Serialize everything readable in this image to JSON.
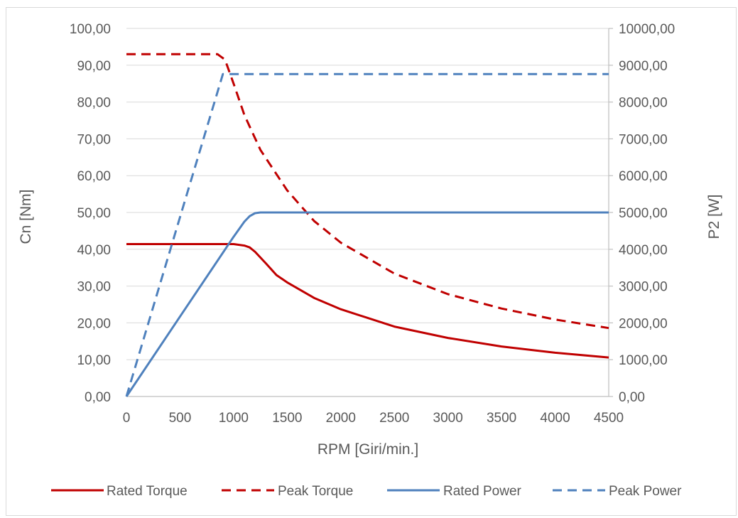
{
  "chart_data": {
    "type": "line",
    "title": "",
    "xlabel": "RPM [Giri/min.]",
    "ylabel_left": "Cn [Nm]",
    "ylabel_right": "P2 [W]",
    "xlim": [
      0,
      4500
    ],
    "ylim_left": [
      0,
      100
    ],
    "ylim_right": [
      0,
      10000
    ],
    "x_ticks": [
      0,
      500,
      1000,
      1500,
      2000,
      2500,
      3000,
      3500,
      4000,
      4500
    ],
    "x_tick_labels": [
      "0",
      "500",
      "1000",
      "1500",
      "2000",
      "2500",
      "3000",
      "3500",
      "4000",
      "4500"
    ],
    "y_left_ticks": [
      0,
      10,
      20,
      30,
      40,
      50,
      60,
      70,
      80,
      90,
      100
    ],
    "y_left_tick_labels": [
      "0,00",
      "10,00",
      "20,00",
      "30,00",
      "40,00",
      "50,00",
      "60,00",
      "70,00",
      "80,00",
      "90,00",
      "100,00"
    ],
    "y_right_ticks": [
      0,
      1000,
      2000,
      3000,
      4000,
      5000,
      6000,
      7000,
      8000,
      9000,
      10000
    ],
    "y_right_tick_labels": [
      "0,00",
      "1000,00",
      "2000,00",
      "3000,00",
      "4000,00",
      "5000,00",
      "6000,00",
      "7000,00",
      "8000,00",
      "9000,00",
      "10000,00"
    ],
    "grid": "horizontal",
    "legend_position": "bottom",
    "series": [
      {
        "name": "Rated Torque",
        "axis": "left",
        "color": "#c00000",
        "dash": "solid",
        "x": [
          0,
          500,
          1000,
          1100,
          1150,
          1200,
          1300,
          1400,
          1500,
          1750,
          2000,
          2500,
          3000,
          3500,
          4000,
          4500
        ],
        "y": [
          41.4,
          41.4,
          41.4,
          41.0,
          40.5,
          39.3,
          36.2,
          33.0,
          31.0,
          26.8,
          23.7,
          19.0,
          15.9,
          13.6,
          11.9,
          10.6
        ]
      },
      {
        "name": "Peak Torque",
        "axis": "left",
        "color": "#c00000",
        "dash": "dashed",
        "x": [
          0,
          500,
          850,
          920,
          1000,
          1100,
          1250,
          1500,
          1750,
          2000,
          2500,
          3000,
          3500,
          4000,
          4500
        ],
        "y": [
          93.0,
          93.0,
          93.0,
          91.5,
          85.0,
          76.5,
          67.0,
          56.0,
          47.7,
          41.8,
          33.4,
          27.8,
          23.9,
          20.9,
          18.6
        ]
      },
      {
        "name": "Rated Power",
        "axis": "right",
        "color": "#4f81bd",
        "dash": "solid",
        "x": [
          0,
          500,
          1000,
          1100,
          1150,
          1200,
          1250,
          1300,
          1500,
          2000,
          3000,
          4000,
          4500
        ],
        "y": [
          0,
          2170,
          4340,
          4750,
          4900,
          4980,
          5000,
          5000,
          5000,
          5000,
          5000,
          5000,
          5000
        ]
      },
      {
        "name": "Peak Power",
        "axis": "right",
        "color": "#4f81bd",
        "dash": "dashed",
        "x": [
          0,
          500,
          900,
          950,
          1000,
          2000,
          3000,
          4000,
          4500
        ],
        "y": [
          0,
          4870,
          8760,
          8760,
          8760,
          8760,
          8760,
          8760,
          8760
        ]
      }
    ]
  }
}
